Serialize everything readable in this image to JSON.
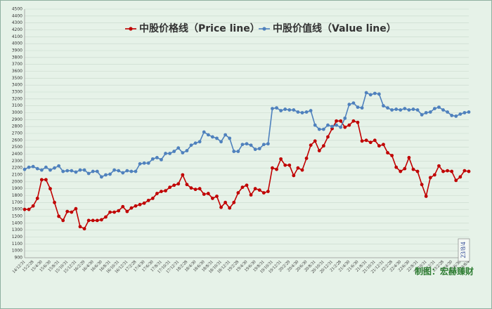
{
  "chart_data": {
    "type": "line",
    "categories": [
      "14/12/31",
      null,
      "15/2/28",
      null,
      "15/4/30",
      null,
      "15/6/30",
      null,
      "15/8/31",
      null,
      "15/10/31",
      null,
      "15/12/31",
      null,
      "16/2/29",
      null,
      "16/4/30",
      null,
      "16/6/30",
      null,
      "16/8/31",
      null,
      "16/10/31",
      null,
      "16/12/31",
      null,
      "17/2/28",
      null,
      "17/4/30",
      null,
      "17/6/30",
      null,
      "17/8/31",
      null,
      "17/10/31",
      null,
      "17/12/31",
      null,
      "18/2/28",
      null,
      "18/4/30",
      null,
      "18/6/30",
      null,
      "18/8/31",
      null,
      "18/10/31",
      null,
      "18/12/31",
      null,
      "19/2/28",
      null,
      "19/4/30",
      null,
      "19/6/30",
      null,
      "19/8/31",
      null,
      "19/10/31",
      null,
      "19/12/31",
      null,
      "20/2/29",
      null,
      "20/4/30",
      null,
      "20/6/30",
      null,
      "20/8/31",
      null,
      "20/10/31",
      null,
      "20/12/31",
      null,
      "21/2/28",
      null,
      "21/4/30",
      null,
      "21/6/30",
      null,
      "21/8/31",
      null,
      "21/10/31",
      null,
      "21/12/31",
      null,
      "22/2/28",
      null,
      "22/4/30",
      null,
      "22/6/30",
      null,
      "22/8/31",
      null,
      "22/10/31",
      null,
      "22/12/31",
      null,
      "23/2/28",
      null,
      "23/4/30",
      null,
      "23/6/30",
      null,
      "23/8/4"
    ],
    "series": [
      {
        "name": "中股价格线（Price line）",
        "color": "#c00000",
        "values": [
          1600,
          1600,
          1650,
          1760,
          2030,
          2030,
          1900,
          1700,
          1500,
          1440,
          1570,
          1560,
          1610,
          1350,
          1320,
          1440,
          1440,
          1440,
          1450,
          1490,
          1560,
          1560,
          1580,
          1640,
          1570,
          1620,
          1650,
          1670,
          1690,
          1730,
          1760,
          1830,
          1860,
          1870,
          1920,
          1950,
          1970,
          2100,
          1960,
          1910,
          1890,
          1900,
          1820,
          1830,
          1760,
          1790,
          1630,
          1700,
          1620,
          1700,
          1840,
          1920,
          1950,
          1810,
          1900,
          1880,
          1840,
          1860,
          2200,
          2180,
          2330,
          2240,
          2240,
          2090,
          2200,
          2170,
          2340,
          2530,
          2590,
          2450,
          2520,
          2650,
          2770,
          2880,
          2880,
          2790,
          2820,
          2880,
          2860,
          2590,
          2600,
          2570,
          2600,
          2520,
          2540,
          2420,
          2380,
          2210,
          2150,
          2190,
          2350,
          2180,
          2150,
          1960,
          1790,
          2060,
          2100,
          2230,
          2150,
          2160,
          2150,
          2020,
          2070,
          2160,
          2150
        ]
      },
      {
        "name": "中股价值线（Value line）",
        "color": "#4f81bd",
        "values": [
          2180,
          2210,
          2220,
          2190,
          2170,
          2210,
          2170,
          2200,
          2230,
          2150,
          2160,
          2160,
          2140,
          2170,
          2170,
          2120,
          2150,
          2150,
          2070,
          2100,
          2110,
          2170,
          2160,
          2130,
          2160,
          2150,
          2150,
          2260,
          2270,
          2270,
          2330,
          2350,
          2320,
          2410,
          2410,
          2440,
          2490,
          2420,
          2450,
          2530,
          2560,
          2580,
          2720,
          2680,
          2650,
          2630,
          2580,
          2680,
          2630,
          2440,
          2440,
          2540,
          2550,
          2530,
          2470,
          2480,
          2540,
          2550,
          3060,
          3070,
          3030,
          3050,
          3040,
          3040,
          3010,
          3000,
          3010,
          3030,
          2820,
          2760,
          2760,
          2820,
          2800,
          2820,
          2790,
          2920,
          3120,
          3140,
          3080,
          3070,
          3290,
          3260,
          3280,
          3270,
          3100,
          3070,
          3040,
          3050,
          3040,
          3060,
          3040,
          3050,
          3040,
          2970,
          3000,
          3010,
          3060,
          3080,
          3040,
          3010,
          2960,
          2950,
          2980,
          3000,
          3010
        ]
      }
    ],
    "ylim": [
      900,
      4500
    ],
    "yticks": [
      900,
      1000,
      1100,
      1200,
      1300,
      1400,
      1500,
      1600,
      1700,
      1800,
      1900,
      2000,
      2100,
      2200,
      2300,
      2400,
      2500,
      2600,
      2700,
      2800,
      2900,
      3000,
      3100,
      3200,
      3300,
      3400,
      3500,
      3600,
      3700,
      3800,
      3900,
      4000,
      4100,
      4200,
      4300,
      4400,
      4500
    ],
    "grid": true,
    "annotation": "23/8/4",
    "credit": "制图：宏赫臻财"
  }
}
